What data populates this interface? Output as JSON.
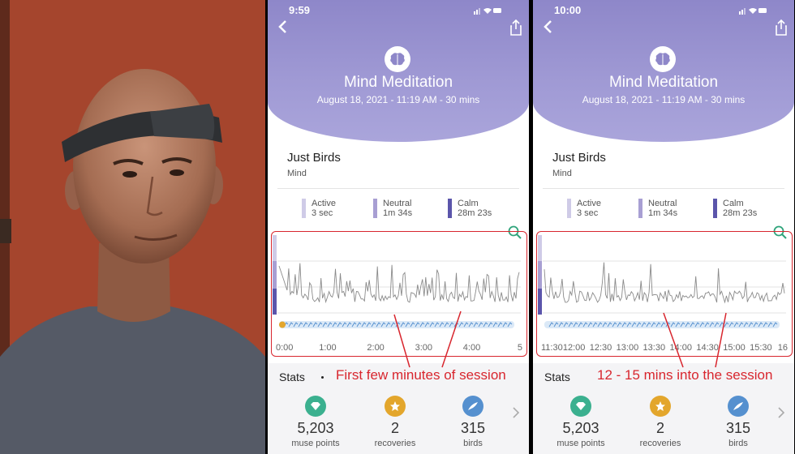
{
  "colors": {
    "hero": "#9f99d4",
    "active": "#cfcbe7",
    "neutral": "#a89fd3",
    "calm": "#5b55ab",
    "annotation": "#d8262e",
    "muse_points": "#3bb08f",
    "recoveries": "#e3a62c",
    "birds": "#5590cf"
  },
  "icons": {
    "back": "chevron-left-icon",
    "share": "share-icon",
    "brain": "brain-icon",
    "zoom": "zoom-icon",
    "muse_points": "gem-icon",
    "recoveries": "star-icon",
    "birds": "bird-icon",
    "more": "chevron-right-icon"
  },
  "panels": [
    {
      "status_time": "9:59",
      "title": "Mind Meditation",
      "subtitle": "August 18, 2021 - 11:19 AM - 30 mins",
      "track": "Just Birds",
      "track_type": "Mind",
      "legend": [
        {
          "name": "Active",
          "value": "3 sec"
        },
        {
          "name": "Neutral",
          "value": "1m 34s"
        },
        {
          "name": "Calm",
          "value": "28m 23s"
        }
      ],
      "x_ticks": [
        "0:00",
        "1:00",
        "2:00",
        "3:00",
        "4:00",
        "5"
      ],
      "stats_label": "Stats",
      "stats": [
        {
          "value": "5,203",
          "label": "muse points"
        },
        {
          "value": "2",
          "label": "recoveries"
        },
        {
          "value": "315",
          "label": "birds"
        }
      ],
      "annotation": "First few minutes of session"
    },
    {
      "status_time": "10:00",
      "title": "Mind Meditation",
      "subtitle": "August 18, 2021 - 11:19 AM - 30 mins",
      "track": "Just Birds",
      "track_type": "Mind",
      "legend": [
        {
          "name": "Active",
          "value": "3 sec"
        },
        {
          "name": "Neutral",
          "value": "1m 34s"
        },
        {
          "name": "Calm",
          "value": "28m 23s"
        }
      ],
      "x_ticks": [
        "11:30",
        "12:00",
        "12:30",
        "13:00",
        "13:30",
        "14:00",
        "14:30",
        "15:00",
        "15:30",
        "16"
      ],
      "stats_label": "Stats",
      "stats": [
        {
          "value": "5,203",
          "label": "muse points"
        },
        {
          "value": "2",
          "label": "recoveries"
        },
        {
          "value": "315",
          "label": "birds"
        }
      ],
      "annotation": "12 - 15 mins into the session"
    }
  ]
}
